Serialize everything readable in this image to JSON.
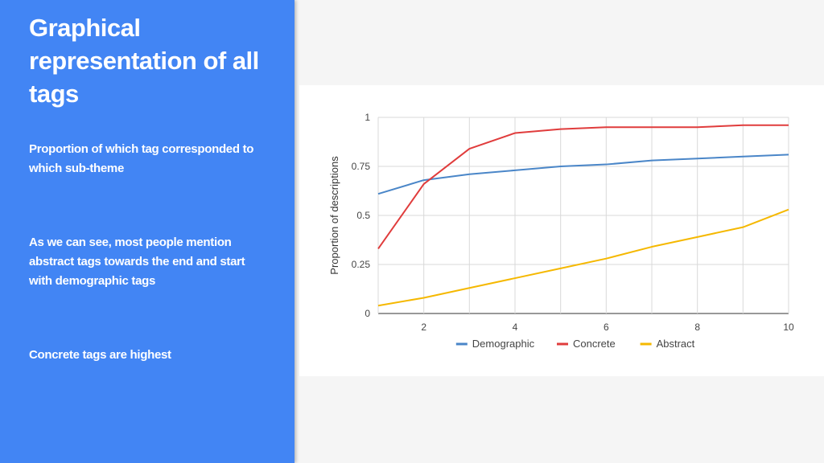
{
  "sidebar": {
    "title": "Graphical representation of all tags",
    "points": [
      "Proportion of which tag corresponded to which sub-theme",
      "As we can see, most people mention abstract tags towards the end and start with demographic tags",
      "Concrete tags are highest"
    ]
  },
  "colors": {
    "sidebar": "#4285f4",
    "demographic": "#4a86c8",
    "concrete": "#e03c3c",
    "abstract": "#f5b800"
  },
  "chart_data": {
    "type": "line",
    "title": "",
    "xlabel": "",
    "ylabel": "Proportion of descriptions",
    "xlim": [
      1,
      10
    ],
    "ylim": [
      0,
      1
    ],
    "x": [
      1,
      2,
      3,
      4,
      5,
      6,
      7,
      8,
      9,
      10
    ],
    "x_ticks": [
      2,
      4,
      6,
      8,
      10
    ],
    "y_ticks": [
      0,
      0.25,
      0.5,
      0.75,
      1
    ],
    "y_tick_labels": [
      "0",
      "0.25",
      "0.5",
      "0.75",
      "1"
    ],
    "legend_position": "bottom",
    "series": [
      {
        "name": "Demographic",
        "color": "#4a86c8",
        "values": [
          0.61,
          0.68,
          0.71,
          0.73,
          0.75,
          0.76,
          0.78,
          0.79,
          0.8,
          0.81
        ]
      },
      {
        "name": "Concrete",
        "color": "#e03c3c",
        "values": [
          0.33,
          0.66,
          0.84,
          0.92,
          0.94,
          0.95,
          0.95,
          0.95,
          0.96,
          0.96
        ]
      },
      {
        "name": "Abstract",
        "color": "#f5b800",
        "values": [
          0.04,
          0.08,
          0.13,
          0.18,
          0.23,
          0.28,
          0.34,
          0.39,
          0.44,
          0.53
        ]
      }
    ]
  }
}
